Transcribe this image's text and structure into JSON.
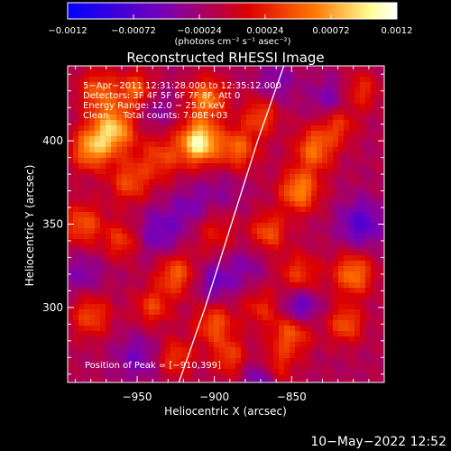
{
  "chart_data": {
    "type": "heatmap",
    "title": "Reconstructed RHESSI Image",
    "xlabel": "Heliocentric X (arcsec)",
    "ylabel": "Heliocentric Y (arcsec)",
    "xlim": [
      -995,
      -790
    ],
    "ylim": [
      255,
      445
    ],
    "xticks": [
      -950,
      -900,
      -850
    ],
    "xtick_labels": [
      "−950",
      "−900",
      "−850"
    ],
    "yticks": [
      300,
      350,
      400
    ],
    "ytick_labels": [
      "300",
      "350",
      "400"
    ],
    "colorbar": {
      "range": [
        -0.0012,
        0.0012
      ],
      "ticks": [
        -0.0012,
        -0.00072,
        -0.00024,
        0.00024,
        0.00072,
        0.0012
      ],
      "tick_labels": [
        "−0.0012",
        "−0.00072",
        "−0.00024",
        "0.00024",
        "0.00072",
        "0.0012"
      ],
      "unit": "(photons cm⁻² s⁻¹ asec⁻²)",
      "colors": [
        "#0000ff",
        "#7d00b4",
        "#dc0000",
        "#ff7800",
        "#ffff96",
        "#ffffff"
      ]
    },
    "annotations": [
      "5−Apr−2011 12:31:28.000 to 12:35:12.000",
      "Detectors: 3F 4F 5F 6F 7F 8F, Att 0",
      "Energy Range: 12.0 − 25.0 keV",
      "Clean     Total counts: 7.08E+03"
    ],
    "peak_label": "Position of Peak = [−910,399]",
    "peak": [
      -910,
      399
    ],
    "limb": [
      [
        -923,
        255
      ],
      [
        -906,
        300
      ],
      [
        -889,
        350
      ],
      [
        -872,
        400
      ],
      [
        -855,
        445
      ]
    ],
    "blobs": [
      {
        "x": -910,
        "y": 399,
        "v": 0.0012,
        "s": 9
      },
      {
        "x": -965,
        "y": 407,
        "v": 0.00095,
        "s": 10
      },
      {
        "x": -980,
        "y": 395,
        "v": 0.0008,
        "s": 9
      },
      {
        "x": -950,
        "y": 430,
        "v": 0.0007,
        "s": 8
      },
      {
        "x": -975,
        "y": 430,
        "v": 0.0006,
        "s": 9
      },
      {
        "x": -935,
        "y": 390,
        "v": 0.0005,
        "s": 10
      },
      {
        "x": -905,
        "y": 425,
        "v": 0.00075,
        "s": 9
      },
      {
        "x": -955,
        "y": 375,
        "v": 0.00055,
        "s": 9
      },
      {
        "x": -985,
        "y": 350,
        "v": 0.0006,
        "s": 9
      },
      {
        "x": -960,
        "y": 340,
        "v": 0.0005,
        "s": 8
      },
      {
        "x": -925,
        "y": 320,
        "v": 0.00065,
        "s": 9
      },
      {
        "x": -940,
        "y": 300,
        "v": 0.0005,
        "s": 8
      },
      {
        "x": -980,
        "y": 295,
        "v": 0.00055,
        "s": 9
      },
      {
        "x": -900,
        "y": 290,
        "v": 0.0006,
        "s": 9
      },
      {
        "x": -925,
        "y": 270,
        "v": 0.0005,
        "s": 8
      },
      {
        "x": -890,
        "y": 270,
        "v": 0.0005,
        "s": 8
      },
      {
        "x": -885,
        "y": 395,
        "v": 0.00065,
        "s": 9
      },
      {
        "x": -870,
        "y": 415,
        "v": 0.00055,
        "s": 8
      },
      {
        "x": -845,
        "y": 370,
        "v": 0.0008,
        "s": 9
      },
      {
        "x": -835,
        "y": 395,
        "v": 0.0007,
        "s": 9
      },
      {
        "x": -865,
        "y": 345,
        "v": 0.0006,
        "s": 8
      },
      {
        "x": -845,
        "y": 320,
        "v": 0.0005,
        "s": 9
      },
      {
        "x": -810,
        "y": 320,
        "v": 0.00075,
        "s": 9
      },
      {
        "x": -815,
        "y": 290,
        "v": 0.0006,
        "s": 8
      },
      {
        "x": -850,
        "y": 285,
        "v": 0.00065,
        "s": 9
      },
      {
        "x": -860,
        "y": 265,
        "v": 0.00045,
        "s": 8
      },
      {
        "x": -820,
        "y": 410,
        "v": 0.0005,
        "s": 8
      },
      {
        "x": -805,
        "y": 430,
        "v": 0.00045,
        "s": 8
      },
      {
        "x": -870,
        "y": 300,
        "v": 0.0004,
        "s": 8
      },
      {
        "x": -900,
        "y": 345,
        "v": 0.00035,
        "s": 10
      },
      {
        "x": -935,
        "y": 345,
        "v": -0.0004,
        "s": 11
      },
      {
        "x": -940,
        "y": 420,
        "v": -0.0003,
        "s": 10
      },
      {
        "x": -895,
        "y": 370,
        "v": -0.0002,
        "s": 10
      },
      {
        "x": -805,
        "y": 350,
        "v": -0.00055,
        "s": 10
      },
      {
        "x": -825,
        "y": 425,
        "v": -0.00035,
        "s": 9
      },
      {
        "x": -860,
        "y": 435,
        "v": -0.0003,
        "s": 9
      },
      {
        "x": -845,
        "y": 300,
        "v": -0.0006,
        "s": 8
      },
      {
        "x": -900,
        "y": 315,
        "v": -0.0004,
        "s": 9
      },
      {
        "x": -950,
        "y": 270,
        "v": -0.00035,
        "s": 10
      },
      {
        "x": -870,
        "y": 258,
        "v": -0.00045,
        "s": 8
      },
      {
        "x": -985,
        "y": 320,
        "v": -0.0003,
        "s": 9
      },
      {
        "x": -915,
        "y": 360,
        "v": -0.0003,
        "s": 9
      },
      {
        "x": -880,
        "y": 325,
        "v": -0.00025,
        "s": 9
      }
    ]
  },
  "footer": {
    "timestamp": "10−May−2022 12:52"
  }
}
